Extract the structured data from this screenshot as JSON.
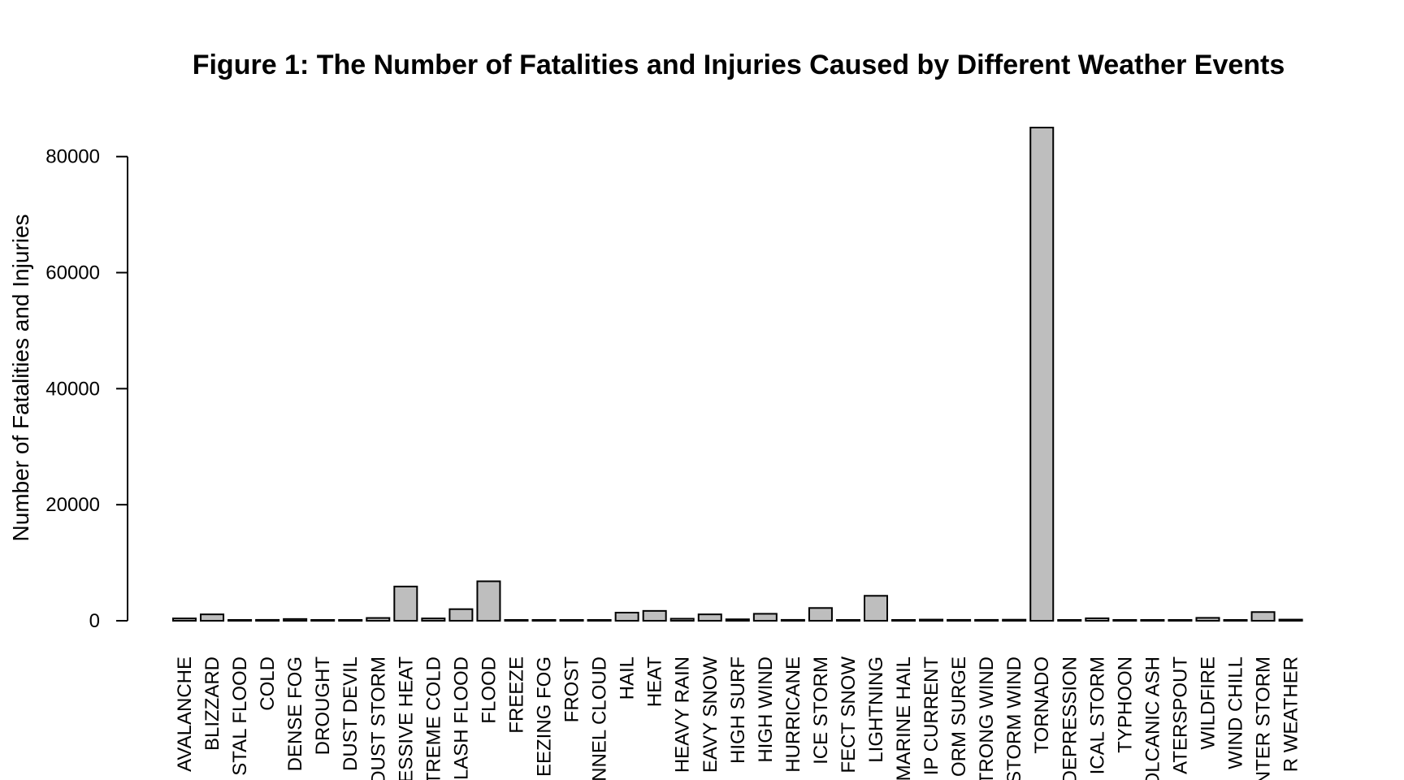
{
  "chart_data": {
    "type": "bar",
    "title": "Figure 1: The Number of Fatalities and Injuries Caused by Different Weather Events",
    "xlabel": "",
    "ylabel": "Number of Fatalities and Injuries",
    "ylim": [
      0,
      85000
    ],
    "yticks": [
      0,
      20000,
      40000,
      60000,
      80000
    ],
    "grid": false,
    "bar_color": "#bebebe",
    "categories": [
      "AVALANCHE",
      "BLIZZARD",
      "STAL FLOOD",
      "COLD",
      "DENSE FOG",
      "DROUGHT",
      "DUST DEVIL",
      "DUST STORM",
      "ESSIVE HEAT",
      "TREME COLD",
      "LASH FLOOD",
      "FLOOD",
      "FREEZE",
      "EEZING FOG",
      "FROST",
      "NNEL CLOUD",
      "HAIL",
      "HEAT",
      "HEAVY RAIN",
      "EAVY SNOW",
      "HIGH SURF",
      "HIGH WIND",
      "HURRICANE",
      "ICE STORM",
      "FECT SNOW",
      "LIGHTNING",
      "MARINE HAIL",
      "IP CURRENT",
      "ORM SURGE",
      "TRONG WIND",
      "STORM WIND",
      "TORNADO",
      "DEPRESSION",
      "ICAL STORM",
      "TYPHOON",
      "OLCANIC ASH",
      "ATERSPOUT",
      "WILDFIRE",
      "WIND CHILL",
      "NTER STORM",
      "R WEATHER"
    ],
    "values": [
      400,
      1100,
      20,
      150,
      300,
      10,
      50,
      480,
      5900,
      400,
      2000,
      6800,
      20,
      20,
      10,
      10,
      1400,
      1700,
      350,
      1100,
      250,
      1200,
      150,
      2200,
      10,
      4300,
      10,
      200,
      150,
      150,
      180,
      85000,
      10,
      420,
      10,
      10,
      100,
      500,
      10,
      1500,
      200
    ]
  }
}
